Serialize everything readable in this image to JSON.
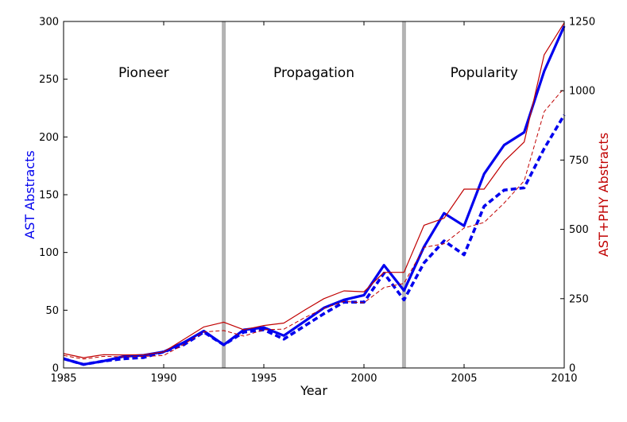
{
  "chart_data": {
    "type": "line",
    "xlabel": "Year",
    "ylabel_left": "AST Abstracts",
    "ylabel_right": "AST+PHY Abstracts",
    "xlim": [
      1985,
      2010
    ],
    "ylim_left": [
      0,
      300
    ],
    "ylim_right": [
      0,
      1250
    ],
    "xticks": [
      1985,
      1990,
      1995,
      2000,
      2005,
      2010
    ],
    "xtick_labels": [
      "1985",
      "1990",
      "1995",
      "2000",
      "2005",
      "2010"
    ],
    "yticks_left": [
      0,
      50,
      100,
      150,
      200,
      250,
      300
    ],
    "ytick_labels_left": [
      "0",
      "50",
      "100",
      "150",
      "200",
      "250",
      "300"
    ],
    "yticks_right": [
      0,
      250,
      500,
      750,
      1000,
      1250
    ],
    "ytick_labels_right": [
      "0",
      "250",
      "500",
      "750",
      "1000",
      "1250"
    ],
    "eras": [
      {
        "label": "Pioneer",
        "center_year": 1989
      },
      {
        "label": "Propagation",
        "center_year": 1997.5
      },
      {
        "label": "Popularity",
        "center_year": 2006
      }
    ],
    "dividers": [
      1993,
      2002
    ],
    "series": [
      {
        "name": "AST Abstracts (solid)",
        "axis": "left",
        "color": "#0000ee",
        "style": "solid-thick",
        "x": [
          1985,
          1986,
          1987,
          1988,
          1989,
          1990,
          1991,
          1992,
          1993,
          1994,
          1995,
          1996,
          1997,
          1998,
          1999,
          2000,
          2001,
          2002,
          2003,
          2004,
          2005,
          2006,
          2007,
          2008,
          2009,
          2010
        ],
        "y": [
          8,
          3,
          6,
          10,
          11,
          14,
          22,
          32,
          20,
          33,
          35,
          28,
          40,
          52,
          59,
          63,
          89,
          67,
          105,
          134,
          123,
          168,
          193,
          204,
          257,
          296
        ]
      },
      {
        "name": "AST Abstracts (dashed)",
        "axis": "left",
        "color": "#0000ee",
        "style": "dashed-thick",
        "x": [
          1985,
          1986,
          1987,
          1988,
          1989,
          1990,
          1991,
          1992,
          1993,
          1994,
          1995,
          1996,
          1997,
          1998,
          1999,
          2000,
          2001,
          2002,
          2003,
          2004,
          2005,
          2006,
          2007,
          2008,
          2009,
          2010
        ],
        "y": [
          8,
          3,
          6,
          8,
          9,
          14,
          20,
          31,
          20,
          31,
          33,
          25,
          36,
          47,
          57,
          57,
          82,
          59,
          91,
          110,
          98,
          140,
          154,
          156,
          190,
          219
        ]
      },
      {
        "name": "AST+PHY Abstracts (solid)",
        "axis": "right",
        "color": "#c00000",
        "style": "solid-thin",
        "x": [
          1985,
          1986,
          1987,
          1988,
          1989,
          1990,
          1991,
          1992,
          1993,
          1994,
          1995,
          1996,
          1997,
          1998,
          1999,
          2000,
          2001,
          2002,
          2003,
          2004,
          2005,
          2006,
          2007,
          2008,
          2009,
          2010
        ],
        "y": [
          52,
          37,
          48,
          47,
          48,
          58,
          103,
          148,
          165,
          138,
          153,
          162,
          207,
          250,
          278,
          275,
          345,
          345,
          515,
          540,
          645,
          645,
          745,
          815,
          1130,
          1245
        ]
      },
      {
        "name": "AST+PHY Abstracts (dashed)",
        "axis": "right",
        "color": "#c00000",
        "style": "dashed-thin",
        "x": [
          1985,
          1986,
          1987,
          1988,
          1989,
          1990,
          1991,
          1992,
          1993,
          1994,
          1995,
          1996,
          1997,
          1998,
          1999,
          2000,
          2001,
          2002,
          2003,
          2004,
          2005,
          2006,
          2007,
          2008,
          2009,
          2010
        ],
        "y": [
          45,
          32,
          42,
          40,
          42,
          45,
          85,
          130,
          135,
          115,
          138,
          140,
          180,
          215,
          240,
          235,
          290,
          305,
          435,
          448,
          505,
          525,
          595,
          675,
          925,
          1010
        ]
      }
    ]
  }
}
